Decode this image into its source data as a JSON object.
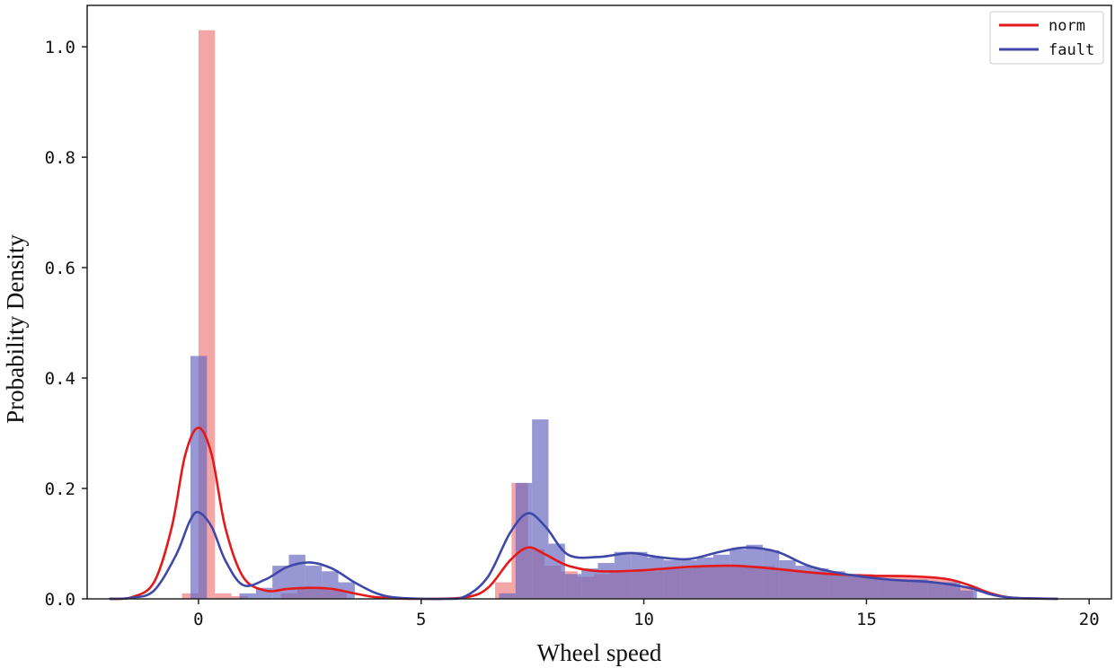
{
  "chart_data": {
    "type": "histogram+kde",
    "title": "",
    "xlabel": "Wheel speed",
    "ylabel": "Probability Density",
    "xlim": [
      -2.5,
      20.5
    ],
    "ylim": [
      0,
      1.075
    ],
    "x_ticks": [
      0,
      5,
      10,
      15,
      20
    ],
    "y_ticks": [
      0.0,
      0.2,
      0.4,
      0.6,
      0.8,
      1.0
    ],
    "x_tick_labels": [
      "0",
      "5",
      "10",
      "15",
      "20"
    ],
    "y_tick_labels": [
      "0.0",
      "0.2",
      "0.4",
      "0.6",
      "0.8",
      "1.0"
    ],
    "legend_position": "top-right",
    "series": [
      {
        "name": "norm",
        "line_color": "#e31a1c",
        "bar_color": "#f08080",
        "bin_width": 0.37,
        "bins": [
          [
            -0.37,
            0.01
          ],
          [
            0.0,
            1.03
          ],
          [
            0.37,
            0.01
          ],
          [
            0.74,
            0.005
          ],
          [
            1.85,
            0.01
          ],
          [
            2.22,
            0.02
          ],
          [
            2.59,
            0.02
          ],
          [
            2.96,
            0.015
          ],
          [
            6.66,
            0.03
          ],
          [
            7.03,
            0.21
          ],
          [
            7.4,
            0.09
          ],
          [
            7.77,
            0.06
          ],
          [
            8.14,
            0.05
          ],
          [
            8.51,
            0.04
          ],
          [
            8.88,
            0.045
          ],
          [
            9.25,
            0.05
          ],
          [
            9.62,
            0.05
          ],
          [
            9.99,
            0.05
          ],
          [
            10.36,
            0.055
          ],
          [
            10.73,
            0.055
          ],
          [
            11.1,
            0.06
          ],
          [
            11.47,
            0.06
          ],
          [
            11.84,
            0.06
          ],
          [
            12.21,
            0.06
          ],
          [
            12.58,
            0.06
          ],
          [
            12.95,
            0.055
          ],
          [
            13.32,
            0.05
          ],
          [
            13.69,
            0.05
          ],
          [
            14.06,
            0.045
          ],
          [
            14.43,
            0.045
          ],
          [
            14.8,
            0.045
          ],
          [
            15.17,
            0.04
          ],
          [
            15.54,
            0.04
          ],
          [
            15.91,
            0.04
          ],
          [
            16.28,
            0.04
          ],
          [
            16.65,
            0.035
          ],
          [
            17.02,
            0.02
          ]
        ],
        "kde": [
          [
            -2.0,
            0.0
          ],
          [
            -1.5,
            0.003
          ],
          [
            -1.0,
            0.03
          ],
          [
            -0.6,
            0.13
          ],
          [
            -0.3,
            0.26
          ],
          [
            0.0,
            0.31
          ],
          [
            0.3,
            0.26
          ],
          [
            0.6,
            0.13
          ],
          [
            1.0,
            0.04
          ],
          [
            1.5,
            0.015
          ],
          [
            2.0,
            0.018
          ],
          [
            2.5,
            0.02
          ],
          [
            3.0,
            0.018
          ],
          [
            3.5,
            0.01
          ],
          [
            4.0,
            0.003
          ],
          [
            5.0,
            0.0
          ],
          [
            6.0,
            0.003
          ],
          [
            6.5,
            0.02
          ],
          [
            7.0,
            0.07
          ],
          [
            7.4,
            0.093
          ],
          [
            7.8,
            0.08
          ],
          [
            8.3,
            0.06
          ],
          [
            9.0,
            0.05
          ],
          [
            10.0,
            0.052
          ],
          [
            11.0,
            0.058
          ],
          [
            12.0,
            0.06
          ],
          [
            13.0,
            0.054
          ],
          [
            14.0,
            0.046
          ],
          [
            15.0,
            0.042
          ],
          [
            16.0,
            0.041
          ],
          [
            16.8,
            0.036
          ],
          [
            17.3,
            0.025
          ],
          [
            17.8,
            0.01
          ],
          [
            18.3,
            0.002
          ],
          [
            19.3,
            0.0
          ]
        ]
      },
      {
        "name": "fault",
        "line_color": "#3f48a8",
        "bar_color": "#6b6bc0",
        "bin_width": 0.37,
        "bins": [
          [
            -0.18,
            0.44
          ],
          [
            0.92,
            0.01
          ],
          [
            1.29,
            0.02
          ],
          [
            1.66,
            0.06
          ],
          [
            2.03,
            0.08
          ],
          [
            2.4,
            0.06
          ],
          [
            2.77,
            0.05
          ],
          [
            3.14,
            0.03
          ],
          [
            6.75,
            0.01
          ],
          [
            7.12,
            0.21
          ],
          [
            7.49,
            0.325
          ],
          [
            7.86,
            0.1
          ],
          [
            8.23,
            0.045
          ],
          [
            8.6,
            0.055
          ],
          [
            8.97,
            0.065
          ],
          [
            9.34,
            0.085
          ],
          [
            9.71,
            0.085
          ],
          [
            10.08,
            0.075
          ],
          [
            10.45,
            0.07
          ],
          [
            10.82,
            0.07
          ],
          [
            11.19,
            0.075
          ],
          [
            11.56,
            0.08
          ],
          [
            11.93,
            0.09
          ],
          [
            12.3,
            0.098
          ],
          [
            12.67,
            0.088
          ],
          [
            13.04,
            0.07
          ],
          [
            13.41,
            0.06
          ],
          [
            13.78,
            0.055
          ],
          [
            14.15,
            0.05
          ],
          [
            14.52,
            0.045
          ],
          [
            14.89,
            0.04
          ],
          [
            15.26,
            0.035
          ],
          [
            15.63,
            0.035
          ],
          [
            16.0,
            0.035
          ],
          [
            16.37,
            0.03
          ],
          [
            16.74,
            0.03
          ],
          [
            17.11,
            0.015
          ]
        ],
        "kde": [
          [
            -2.0,
            0.0
          ],
          [
            -1.5,
            0.002
          ],
          [
            -1.0,
            0.015
          ],
          [
            -0.5,
            0.08
          ],
          [
            -0.2,
            0.14
          ],
          [
            0.0,
            0.157
          ],
          [
            0.3,
            0.13
          ],
          [
            0.6,
            0.07
          ],
          [
            1.0,
            0.025
          ],
          [
            1.5,
            0.035
          ],
          [
            2.0,
            0.058
          ],
          [
            2.5,
            0.066
          ],
          [
            3.0,
            0.055
          ],
          [
            3.5,
            0.03
          ],
          [
            4.0,
            0.01
          ],
          [
            4.5,
            0.002
          ],
          [
            5.5,
            0.0
          ],
          [
            6.0,
            0.005
          ],
          [
            6.5,
            0.04
          ],
          [
            7.0,
            0.12
          ],
          [
            7.4,
            0.155
          ],
          [
            7.8,
            0.13
          ],
          [
            8.3,
            0.08
          ],
          [
            9.0,
            0.076
          ],
          [
            9.7,
            0.083
          ],
          [
            10.3,
            0.076
          ],
          [
            11.0,
            0.072
          ],
          [
            11.7,
            0.085
          ],
          [
            12.3,
            0.093
          ],
          [
            13.0,
            0.085
          ],
          [
            13.7,
            0.06
          ],
          [
            14.5,
            0.045
          ],
          [
            15.5,
            0.035
          ],
          [
            16.5,
            0.03
          ],
          [
            17.3,
            0.02
          ],
          [
            17.8,
            0.008
          ],
          [
            18.3,
            0.002
          ],
          [
            19.3,
            0.0
          ]
        ]
      }
    ]
  }
}
